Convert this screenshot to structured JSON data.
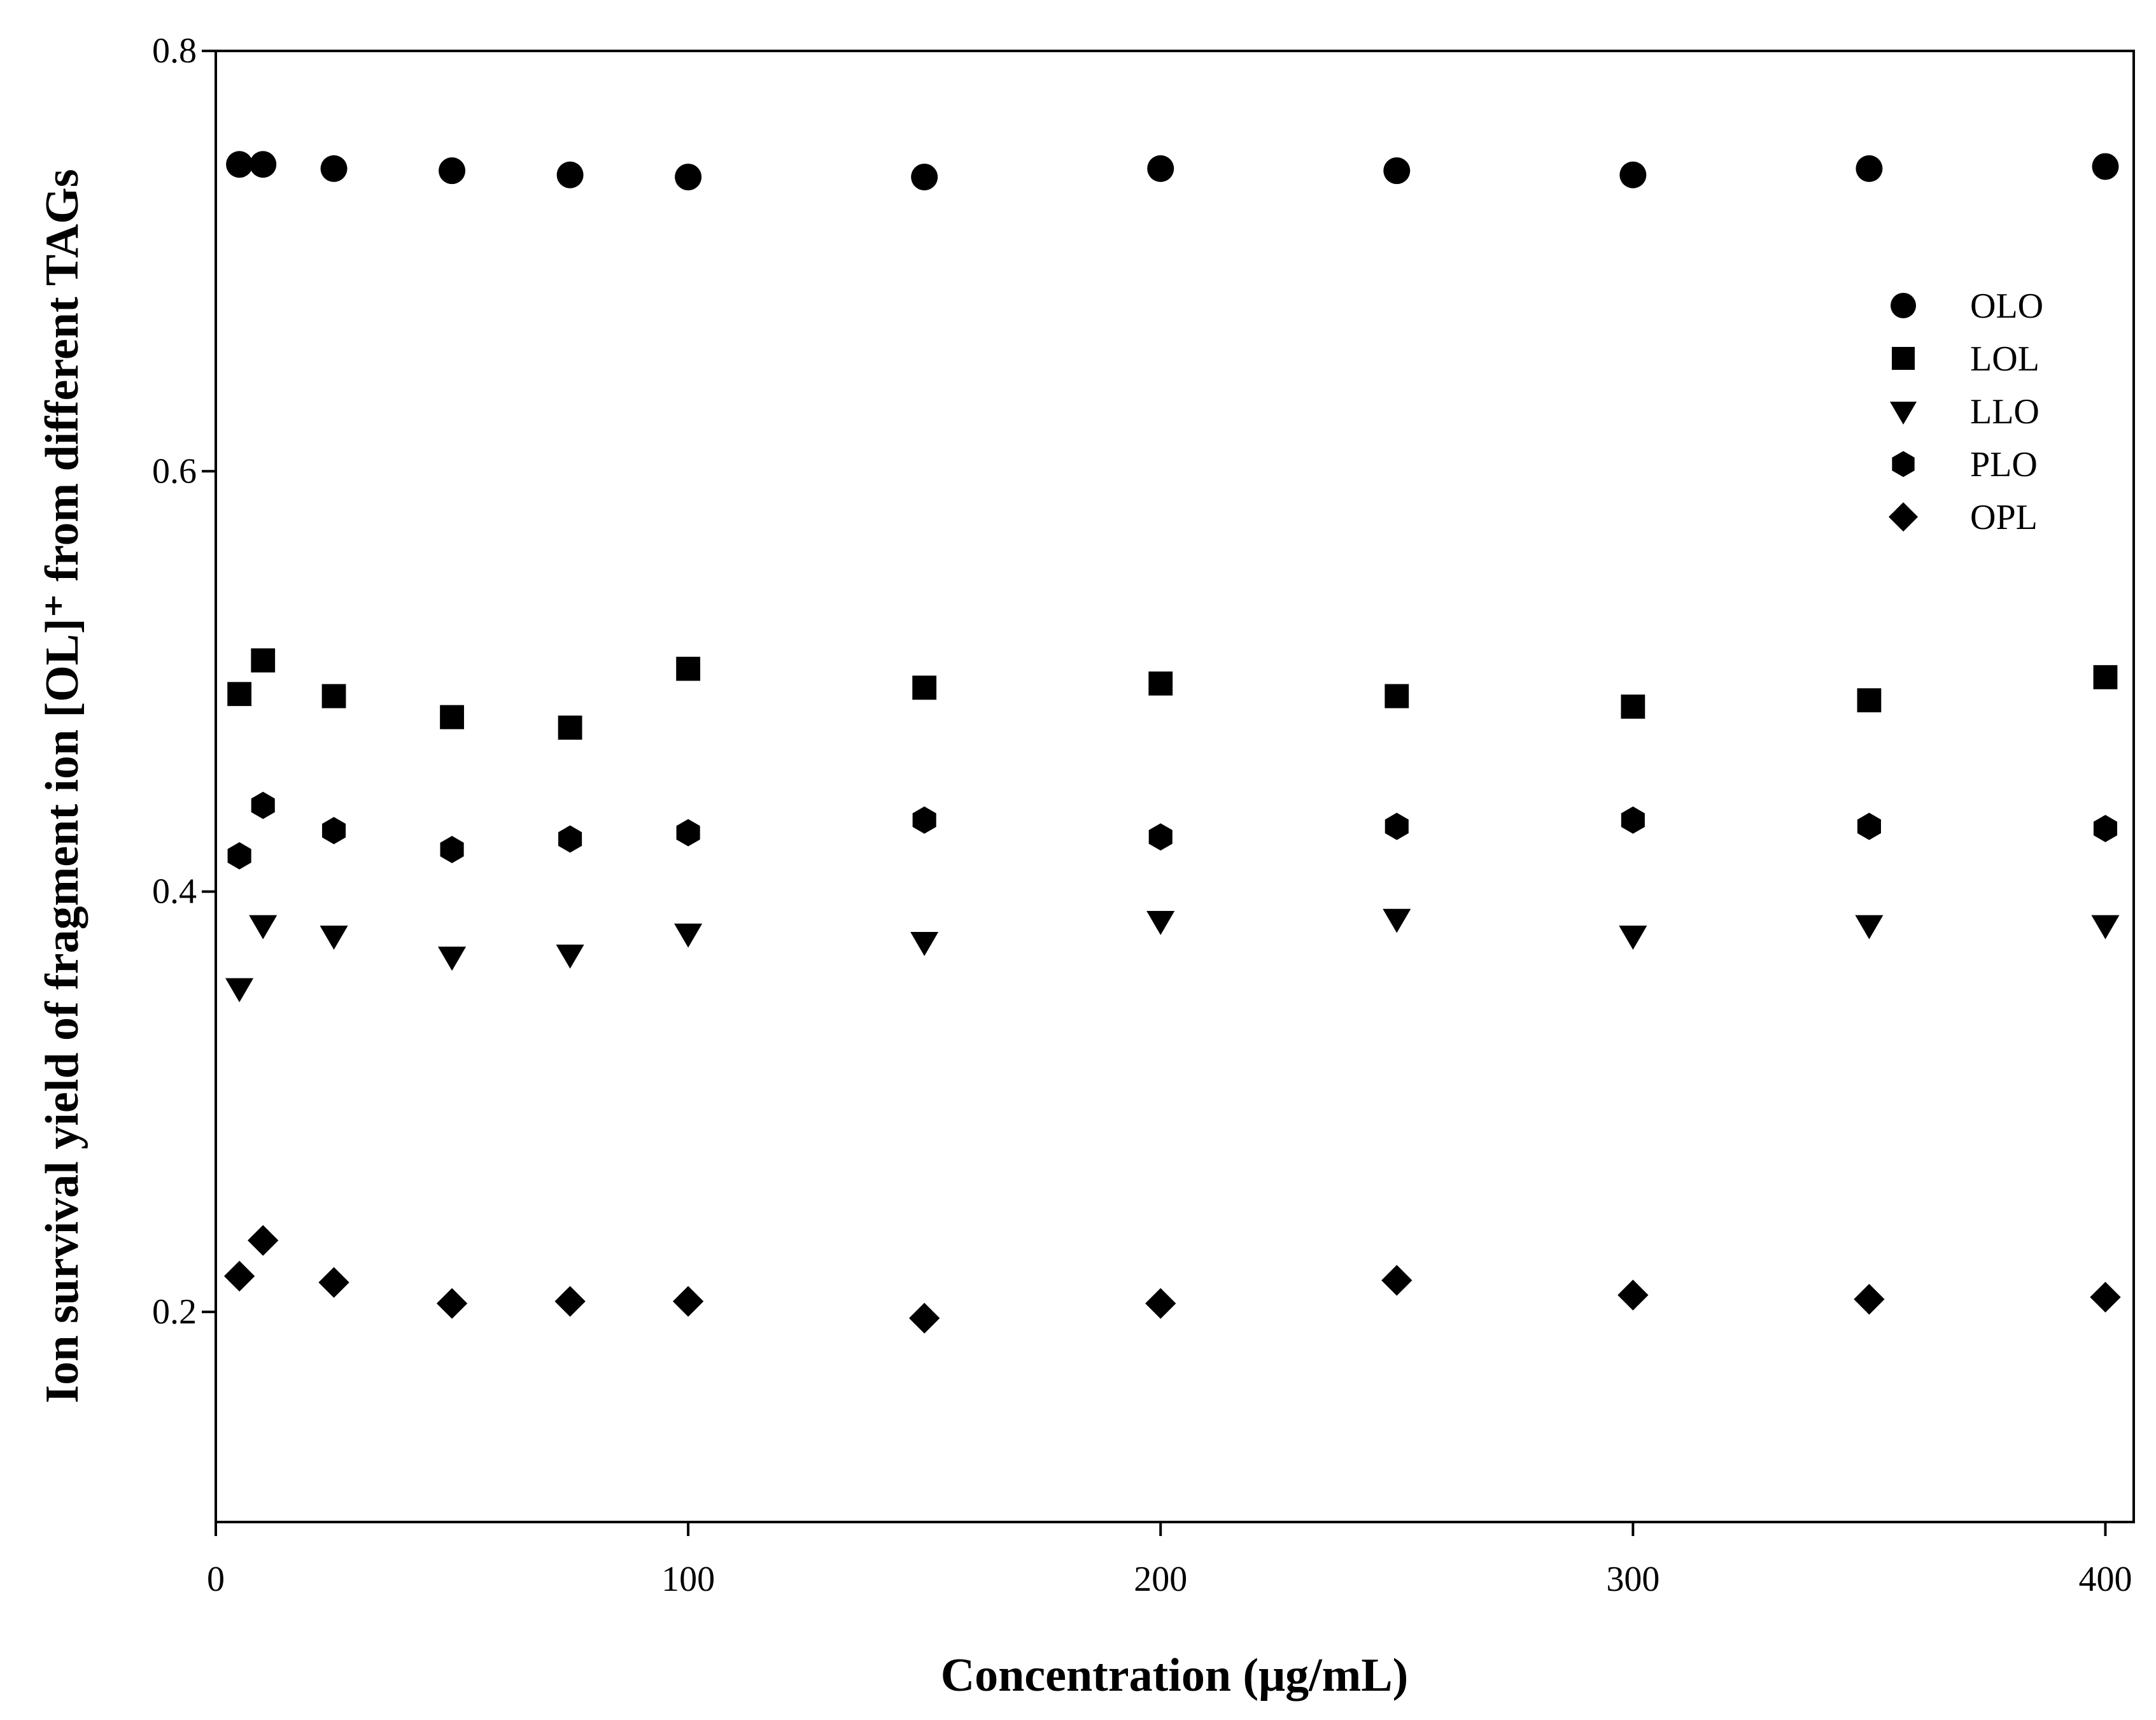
{
  "chart_data": {
    "type": "scatter",
    "title": "",
    "xlabel": "Concentration (μg/mL)",
    "ylabel": "Ion survival yield of fragment ion [OL]⁺ from different TAGs",
    "xlim": [
      0,
      406
    ],
    "ylim": [
      0.1,
      0.8
    ],
    "x_ticks": [
      "0",
      "100",
      "200",
      "300",
      "400"
    ],
    "y_ticks": [
      "0.2",
      "0.4",
      "0.6",
      "0.8"
    ],
    "grid": false,
    "legend_position": "upper-right",
    "x": [
      5,
      10,
      25,
      50,
      75,
      100,
      150,
      200,
      250,
      300,
      350,
      400
    ],
    "series": [
      {
        "name": "OLO",
        "marker": "circle",
        "values": [
          0.746,
          0.746,
          0.744,
          0.743,
          0.741,
          0.74,
          0.74,
          0.744,
          0.743,
          0.741,
          0.744,
          0.745
        ]
      },
      {
        "name": "LOL",
        "marker": "square",
        "values": [
          0.494,
          0.51,
          0.493,
          0.483,
          0.478,
          0.506,
          0.497,
          0.499,
          0.493,
          0.488,
          0.491,
          0.502
        ]
      },
      {
        "name": "LLO",
        "marker": "triangle-down",
        "values": [
          0.354,
          0.384,
          0.379,
          0.369,
          0.37,
          0.38,
          0.376,
          0.386,
          0.387,
          0.379,
          0.384,
          0.384
        ]
      },
      {
        "name": "PLO",
        "marker": "hexagon",
        "values": [
          0.417,
          0.441,
          0.429,
          0.42,
          0.425,
          0.428,
          0.434,
          0.426,
          0.431,
          0.434,
          0.431,
          0.43
        ]
      },
      {
        "name": "OPL",
        "marker": "diamond",
        "values": [
          0.217,
          0.234,
          0.214,
          0.204,
          0.205,
          0.205,
          0.197,
          0.204,
          0.215,
          0.208,
          0.206,
          0.207
        ]
      }
    ]
  }
}
